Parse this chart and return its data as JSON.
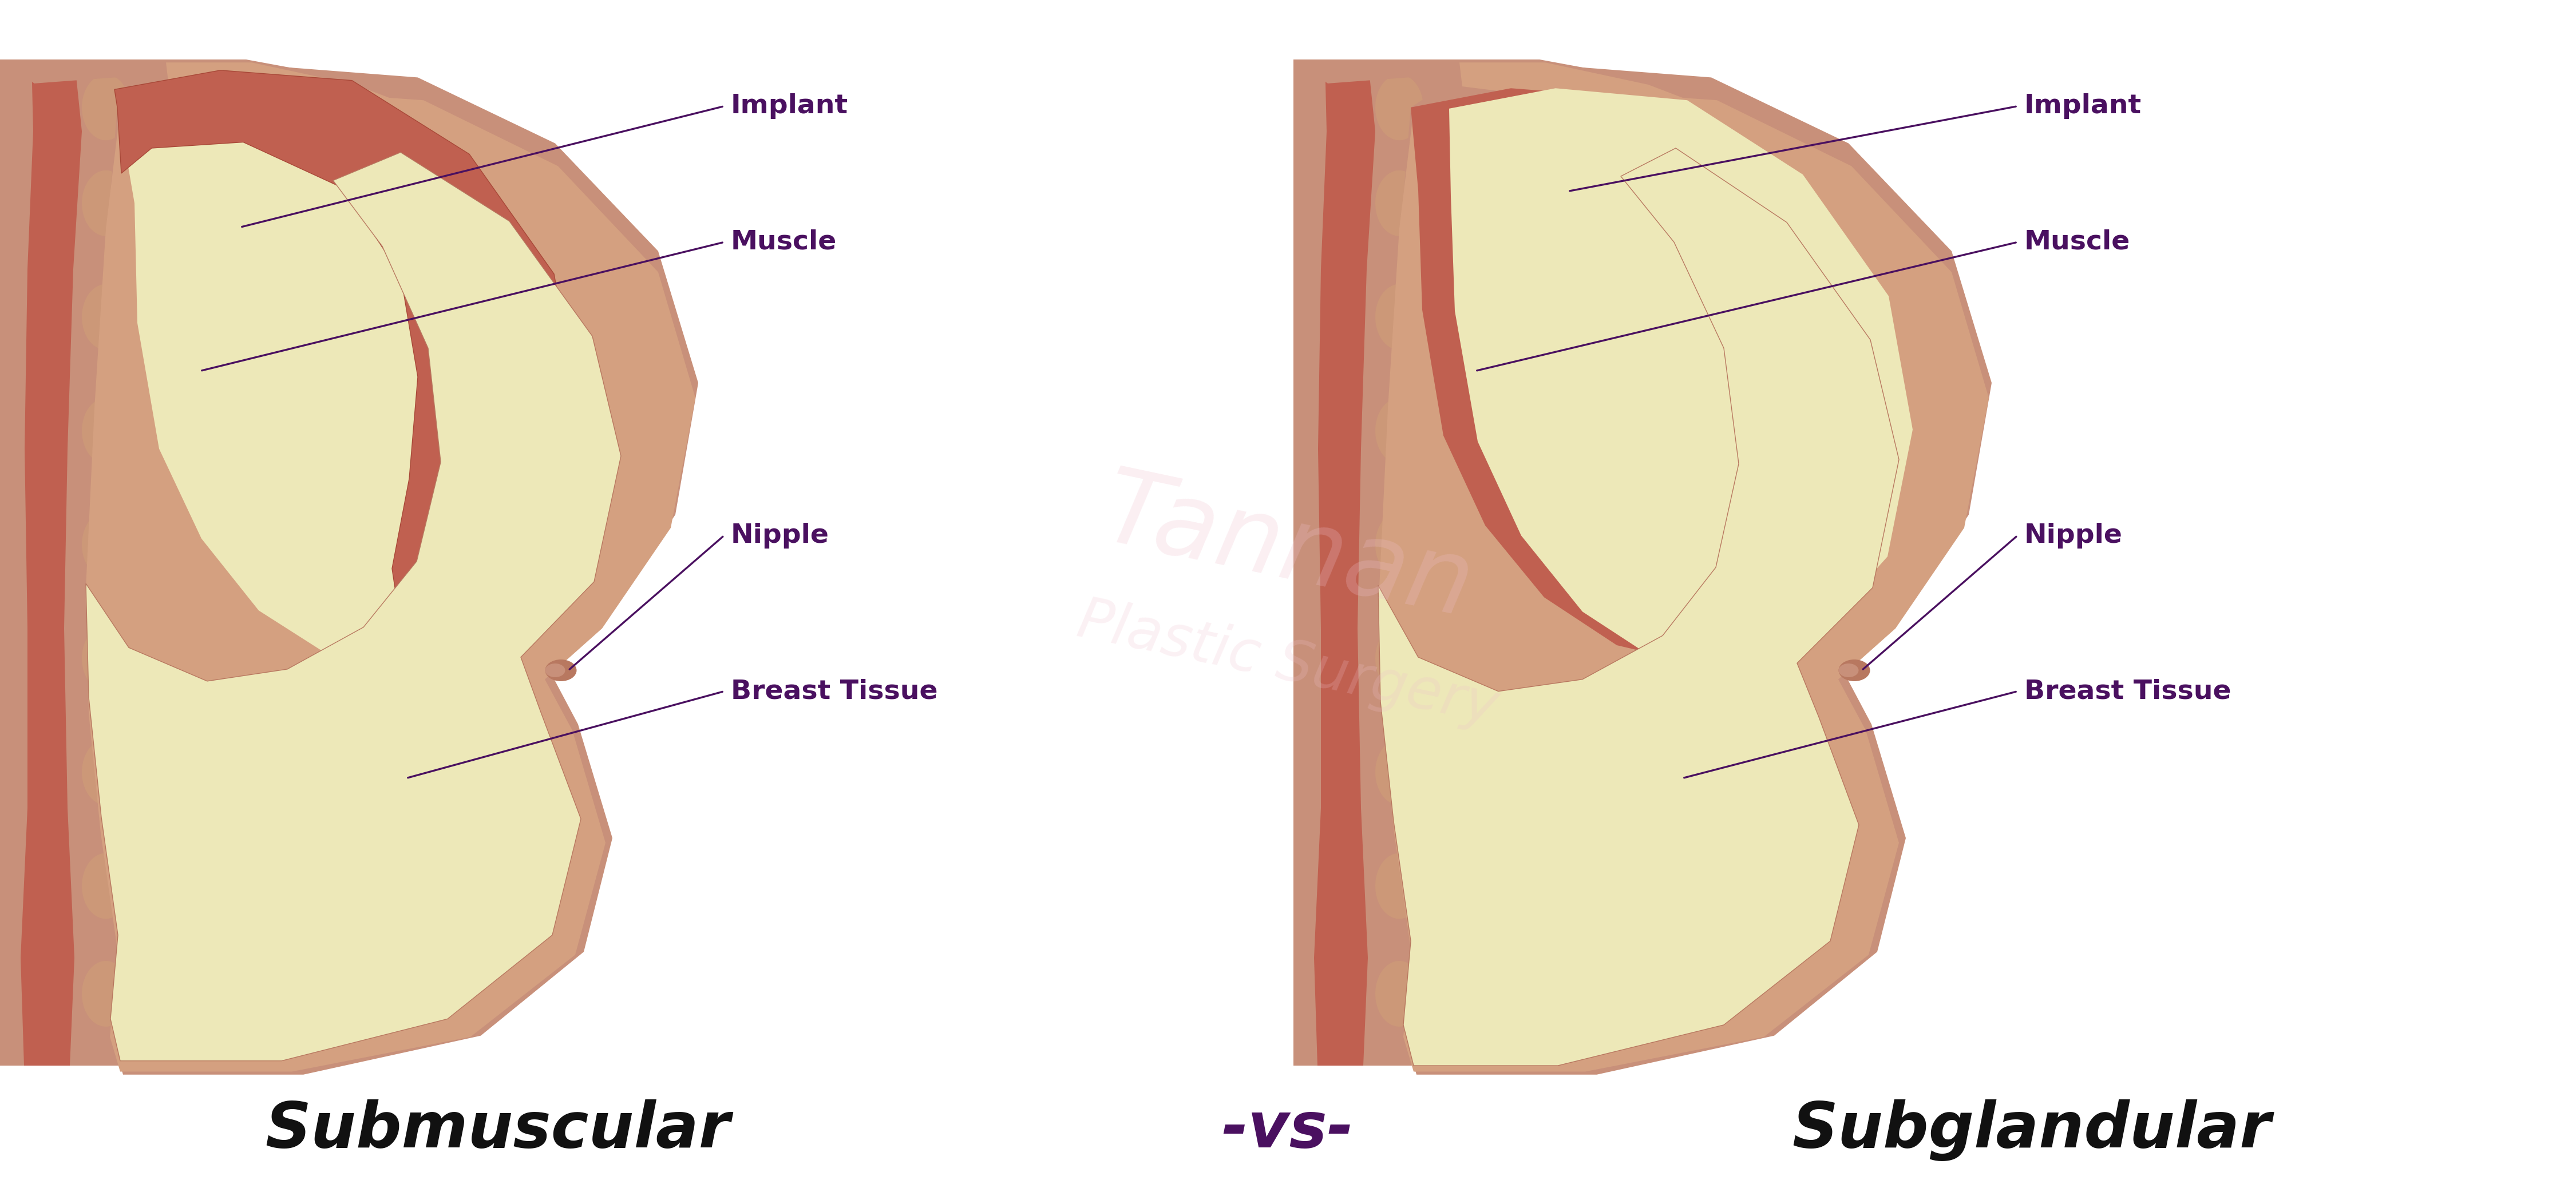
{
  "background_color": "#ffffff",
  "label_color": "#4a1060",
  "title_submuscular": "Submuscular",
  "title_vs": "-vs-",
  "title_subglandular": "Subglandular",
  "title_fontsize": 80,
  "label_fontsize": 34,
  "colors": {
    "skin_outer": "#c8907a",
    "skin_mid": "#d4a080",
    "skin_dark": "#b87860",
    "muscle_red": "#c06050",
    "muscle_border": "#a84838",
    "fat_cream": "#ede8b8",
    "fat_light": "#f2eecc",
    "oval_tan": "#cc9878",
    "col_bg": "#c8907a"
  },
  "labels": {
    "implant": "Implant",
    "muscle": "Muscle",
    "nipple": "Nipple",
    "breast_tissue": "Breast Tissue"
  }
}
